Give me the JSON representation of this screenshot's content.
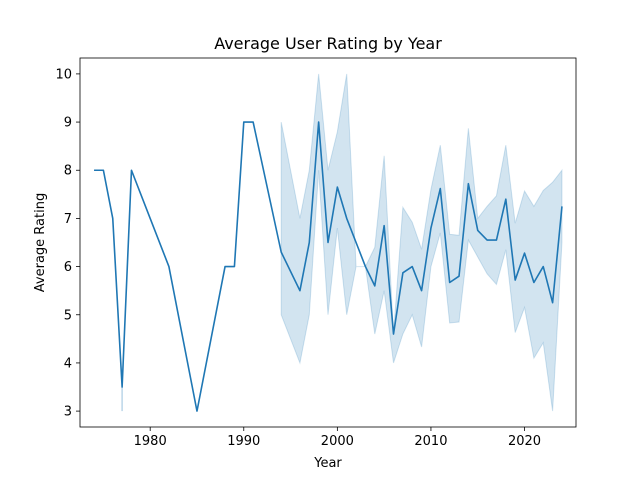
{
  "chart_data": {
    "type": "line",
    "title": "Average User Rating by Year",
    "xlabel": "Year",
    "ylabel": "Average Rating",
    "xlim": [
      1972.5,
      2025.5
    ],
    "ylim": [
      2.67,
      10.33
    ],
    "x_ticks": [
      1980,
      1990,
      2000,
      2010,
      2020
    ],
    "x_tick_labels": [
      "1980",
      "1990",
      "2000",
      "2010",
      "2020"
    ],
    "y_ticks": [
      3,
      4,
      5,
      6,
      7,
      8,
      9,
      10
    ],
    "y_tick_labels": [
      "3",
      "4",
      "5",
      "6",
      "7",
      "8",
      "9",
      "10"
    ],
    "grid": false,
    "legend": "none",
    "colors": {
      "line": "#1f77b4",
      "band": "#1f77b4",
      "band_opacity": 0.2
    },
    "series": [
      {
        "x": [
          1974,
          1975,
          1976,
          1977,
          1978,
          1980,
          1982,
          1985,
          1988,
          1989,
          1990,
          1991,
          1994,
          1996,
          1997,
          1998,
          1999,
          2000,
          2001,
          2002,
          2003,
          2004,
          2005,
          2006,
          2007,
          2008,
          2009,
          2010,
          2011,
          2012,
          2013,
          2014,
          2015,
          2016,
          2017,
          2018,
          2019,
          2020,
          2021,
          2022,
          2023,
          2024
        ],
        "y": [
          8.0,
          8.0,
          7.0,
          3.5,
          8.0,
          7.0,
          6.0,
          3.0,
          6.0,
          6.0,
          9.0,
          9.0,
          6.3,
          5.5,
          6.5,
          9.0,
          6.5,
          7.65,
          7.0,
          6.5,
          6.0,
          5.6,
          6.85,
          4.6,
          5.87,
          6.0,
          5.5,
          6.8,
          7.62,
          5.67,
          5.8,
          7.72,
          6.75,
          6.55,
          6.55,
          7.4,
          5.72,
          6.28,
          5.67,
          6.0,
          5.25,
          7.25
        ],
        "lower": [
          null,
          null,
          null,
          3.0,
          null,
          null,
          null,
          null,
          null,
          null,
          null,
          null,
          5.0,
          4.0,
          5.0,
          8.0,
          5.0,
          6.8,
          5.0,
          6.0,
          6.0,
          4.6,
          5.5,
          4.0,
          4.6,
          5.0,
          4.33,
          6.0,
          6.7,
          4.83,
          4.85,
          6.55,
          6.2,
          5.85,
          5.63,
          6.35,
          4.63,
          5.15,
          4.1,
          4.42,
          3.0,
          6.5
        ],
        "upper": [
          null,
          null,
          null,
          3.5,
          null,
          null,
          null,
          null,
          null,
          null,
          null,
          null,
          9.0,
          7.0,
          8.0,
          10.0,
          8.0,
          8.8,
          10.0,
          6.0,
          6.0,
          6.4,
          8.3,
          4.6,
          7.23,
          6.92,
          6.36,
          7.6,
          8.52,
          6.67,
          6.65,
          8.87,
          7.0,
          7.25,
          7.47,
          8.52,
          6.9,
          7.57,
          7.25,
          7.58,
          7.75,
          8.0
        ]
      }
    ]
  }
}
